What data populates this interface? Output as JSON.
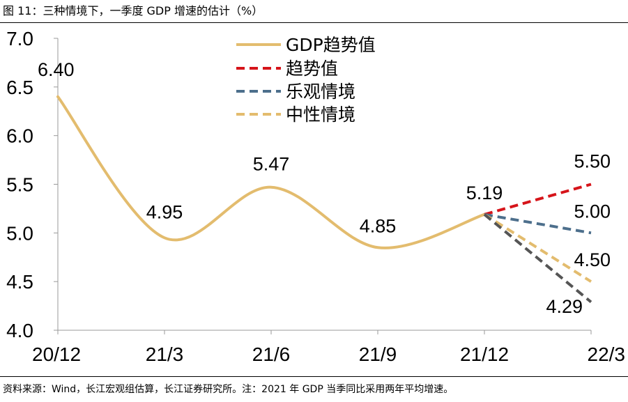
{
  "figure": {
    "title": "图 11：三种情境下，一季度 GDP 增速的估计（%）",
    "source": "资料来源：Wind，长江宏观组估算，长江证券研究所。注：2021 年 GDP 当季同比采用两年平均增速。"
  },
  "chart_data": {
    "type": "line",
    "title": "三种情境下，一季度 GDP 增速的估计（%）",
    "xlabel": "",
    "ylabel": "%",
    "categories": [
      "20/12",
      "21/3",
      "21/6",
      "21/9",
      "21/12",
      "22/3"
    ],
    "yticks": [
      "7.0",
      "6.5",
      "6.0",
      "5.5",
      "5.0",
      "4.5",
      "4.0"
    ],
    "ylim": [
      4.0,
      7.0
    ],
    "grid": false,
    "legend_position": "top-center",
    "series": [
      {
        "name": "GDP趋势值",
        "style": "solid",
        "color": "#E3BC6E",
        "values": [
          6.4,
          4.95,
          5.47,
          4.85,
          5.19,
          null
        ],
        "labels": [
          "6.40",
          "4.95",
          "5.47",
          "4.85",
          "5.19",
          ""
        ]
      },
      {
        "name": "趋势值",
        "style": "dashed",
        "color": "#D6141A",
        "values": [
          null,
          null,
          null,
          null,
          5.19,
          5.5
        ],
        "labels": [
          "",
          "",
          "",
          "",
          "",
          "5.50"
        ]
      },
      {
        "name": "乐观情境",
        "style": "dashed",
        "color": "#4D6F8C",
        "values": [
          null,
          null,
          null,
          null,
          5.19,
          5.0
        ],
        "labels": [
          "",
          "",
          "",
          "",
          "",
          "5.00"
        ]
      },
      {
        "name": "中性情境",
        "style": "dashed",
        "color": "#E3BC6E",
        "values": [
          null,
          null,
          null,
          null,
          5.19,
          4.5
        ],
        "labels": [
          "",
          "",
          "",
          "",
          "",
          "4.50"
        ]
      },
      {
        "name": "",
        "style": "dashed",
        "color": "#555555",
        "values": [
          null,
          null,
          null,
          null,
          5.19,
          4.29
        ],
        "labels": [
          "",
          "",
          "",
          "",
          "",
          "4.29"
        ]
      }
    ]
  }
}
